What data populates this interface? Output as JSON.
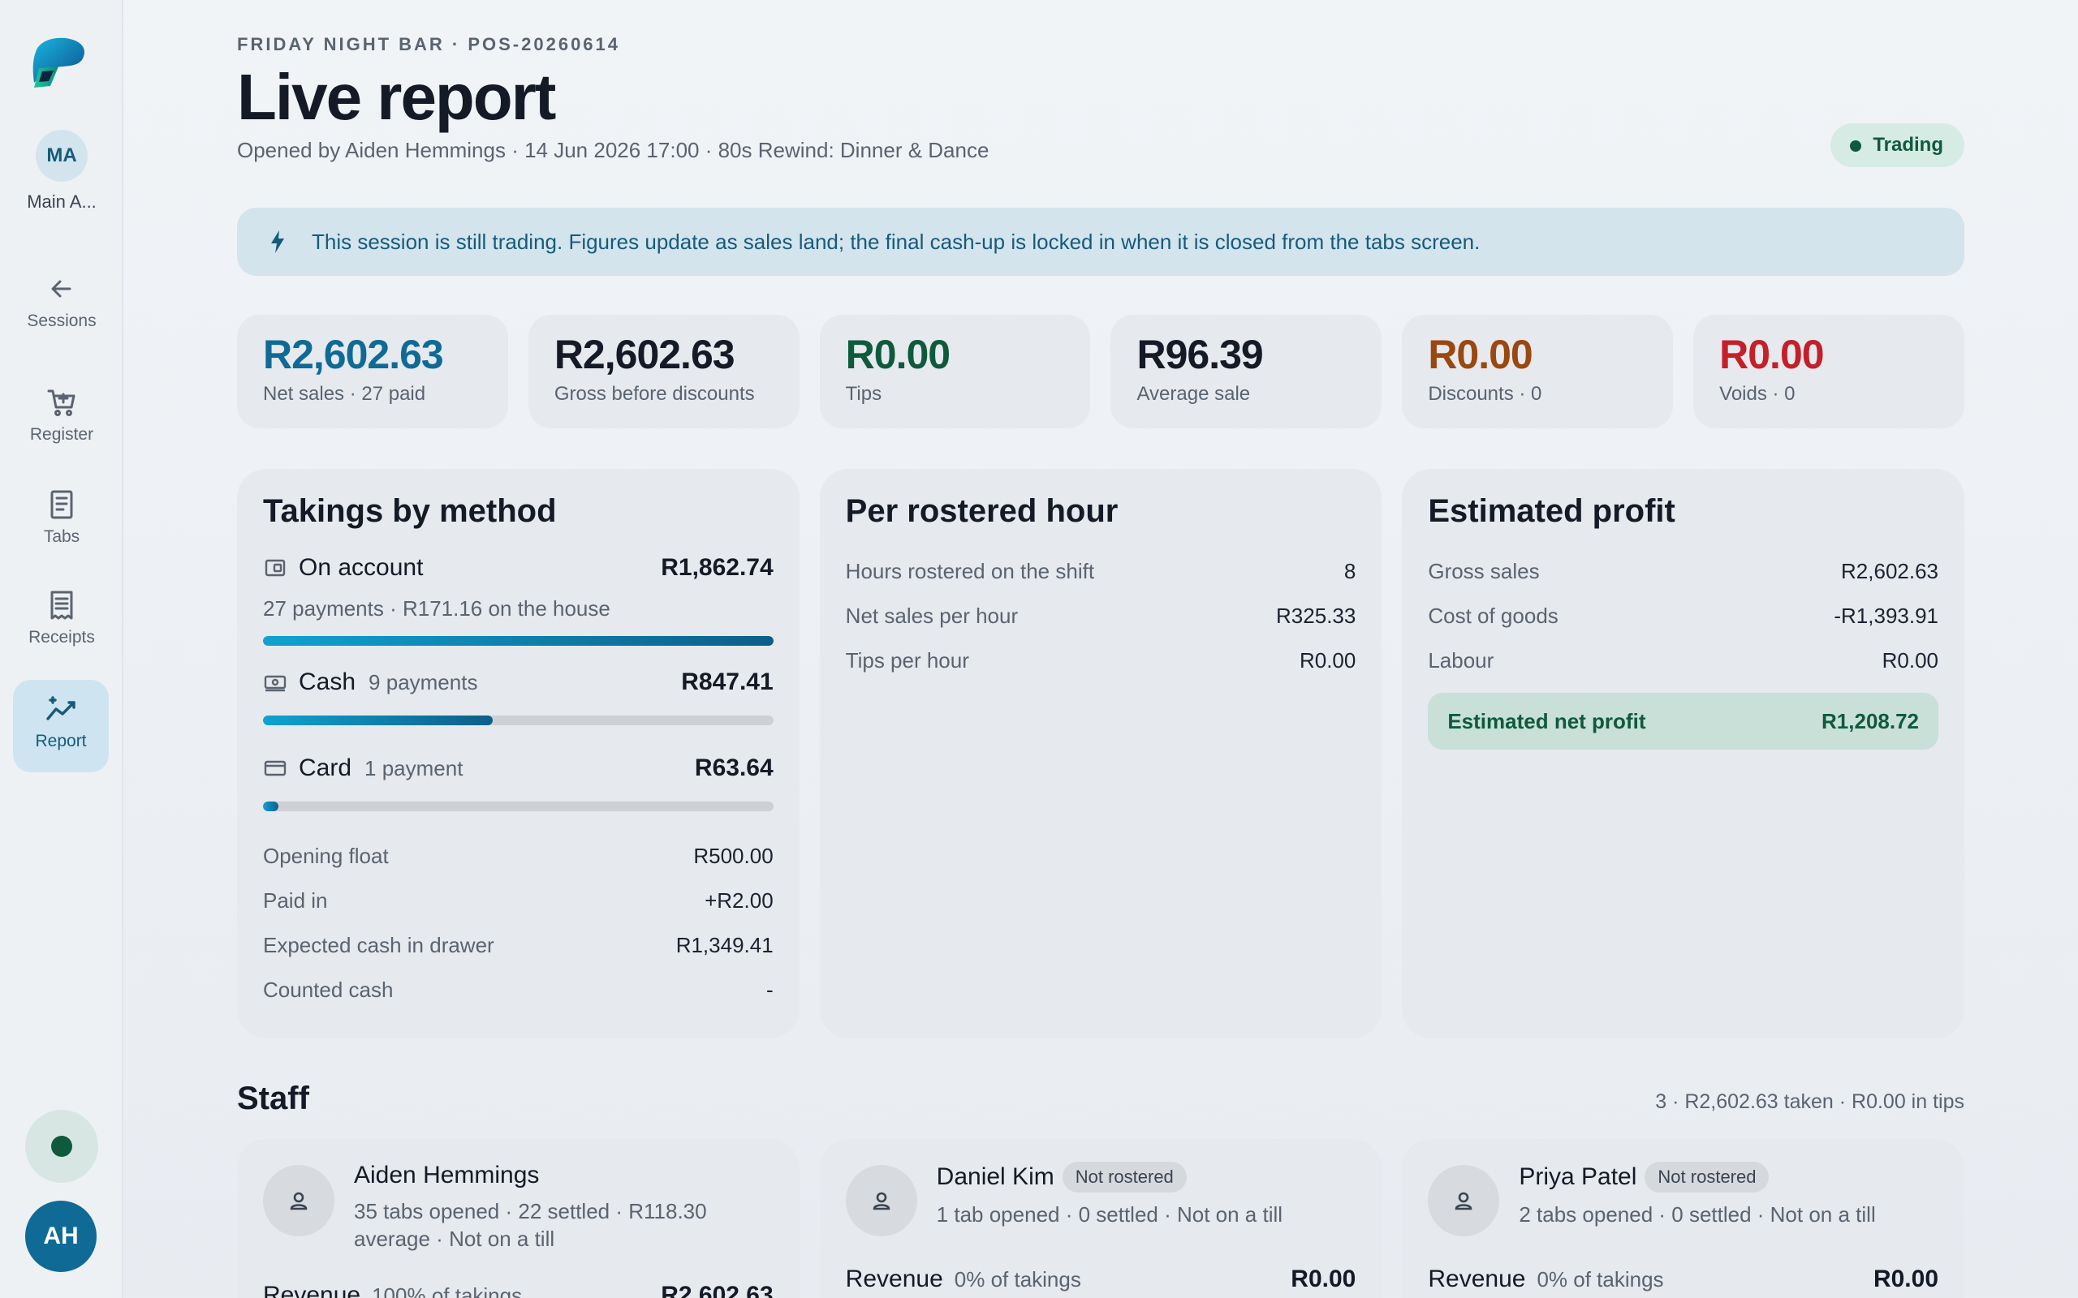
{
  "sidebar": {
    "account_initials": "MA",
    "account_label": "Main A...",
    "items": [
      {
        "label": "Sessions",
        "icon": "arrow-left-icon"
      },
      {
        "label": "Register",
        "icon": "cart-icon"
      },
      {
        "label": "Tabs",
        "icon": "tabs-icon"
      },
      {
        "label": "Receipts",
        "icon": "receipt-icon"
      },
      {
        "label": "Report",
        "icon": "chart-sparkle-icon"
      }
    ],
    "user_initials": "AH"
  },
  "header": {
    "eyebrow": "FRIDAY NIGHT BAR · POS-20260614",
    "title": "Live report",
    "subtitle": "Opened by Aiden Hemmings · 14 Jun 2026 17:00 · 80s Rewind: Dinner & Dance",
    "status": "Trading"
  },
  "banner": "This session is still trading. Figures update as sales land; the final cash-up is locked in when it is closed from the tabs screen.",
  "kpis": [
    {
      "value": "R2,602.63",
      "label": "Net sales · 27 paid",
      "color": "#0f6a96"
    },
    {
      "value": "R2,602.63",
      "label": "Gross before discounts",
      "color": "#141a26"
    },
    {
      "value": "R0.00",
      "label": "Tips",
      "color": "#0f5a3d"
    },
    {
      "value": "R96.39",
      "label": "Average sale",
      "color": "#141a26"
    },
    {
      "value": "R0.00",
      "label": "Discounts · 0",
      "color": "#9a4710"
    },
    {
      "value": "R0.00",
      "label": "Voids · 0",
      "color": "#c41f2a"
    }
  ],
  "takings": {
    "title": "Takings by method",
    "methods": [
      {
        "name": "On account",
        "count": "",
        "amount": "R1,862.74",
        "sub": "27 payments · R171.16 on the house",
        "share": 1.0
      },
      {
        "name": "Cash",
        "count": "9 payments",
        "amount": "R847.41",
        "sub": "",
        "share": 0.45
      },
      {
        "name": "Card",
        "count": "1 payment",
        "amount": "R63.64",
        "sub": "",
        "share": 0.03
      }
    ],
    "rows": [
      {
        "label": "Opening float",
        "value": "R500.00"
      },
      {
        "label": "Paid in",
        "value": "+R2.00"
      },
      {
        "label": "Expected cash in drawer",
        "value": "R1,349.41"
      },
      {
        "label": "Counted cash",
        "value": "-"
      }
    ]
  },
  "per_hour": {
    "title": "Per rostered hour",
    "rows": [
      {
        "label": "Hours rostered on the shift",
        "value": "8"
      },
      {
        "label": "Net sales per hour",
        "value": "R325.33"
      },
      {
        "label": "Tips per hour",
        "value": "R0.00"
      }
    ]
  },
  "profit": {
    "title": "Estimated profit",
    "rows": [
      {
        "label": "Gross sales",
        "value": "R2,602.63"
      },
      {
        "label": "Cost of goods",
        "value": "-R1,393.91"
      },
      {
        "label": "Labour",
        "value": "R0.00"
      }
    ],
    "net_label": "Estimated net profit",
    "net_value": "R1,208.72"
  },
  "staff": {
    "title": "Staff",
    "summary": "3 · R2,602.63 taken · R0.00 in tips",
    "members": [
      {
        "name": "Aiden Hemmings",
        "badge": "",
        "meta": "35 tabs opened · 22 settled · R118.30 average · Not on a till",
        "revenue_label": "Revenue",
        "revenue_share": "100% of takings",
        "revenue": "R2,602.63"
      },
      {
        "name": "Daniel Kim",
        "badge": "Not rostered",
        "meta": "1 tab opened · 0 settled · Not on a till",
        "revenue_label": "Revenue",
        "revenue_share": "0% of takings",
        "revenue": "R0.00"
      },
      {
        "name": "Priya Patel",
        "badge": "Not rostered",
        "meta": "2 tabs opened · 0 settled · Not on a till",
        "revenue_label": "Revenue",
        "revenue_share": "0% of takings",
        "revenue": "R0.00"
      }
    ]
  }
}
